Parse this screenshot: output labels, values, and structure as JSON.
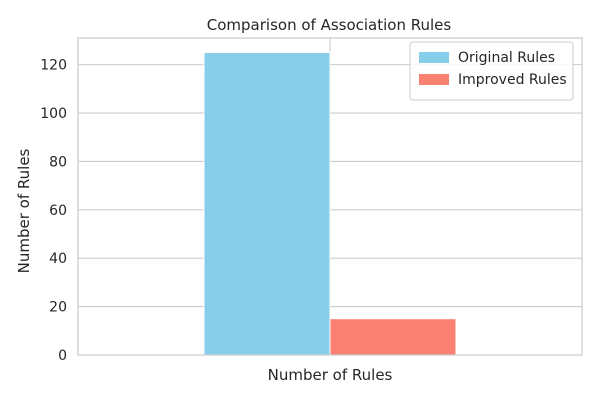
{
  "chart_data": {
    "type": "bar",
    "title": "Comparison of Association Rules",
    "xlabel": "Number of Rules",
    "ylabel": "Number of Rules",
    "categories": [
      "Number of Rules"
    ],
    "series": [
      {
        "name": "Original Rules",
        "values": [
          125
        ],
        "color": "#87CEEB"
      },
      {
        "name": "Improved Rules",
        "values": [
          15
        ],
        "color": "#FA8072"
      }
    ],
    "ylim": [
      0,
      131
    ],
    "yticks": [
      0,
      20,
      40,
      60,
      80,
      100,
      120
    ],
    "grid": true,
    "legend_position": "top-right"
  }
}
